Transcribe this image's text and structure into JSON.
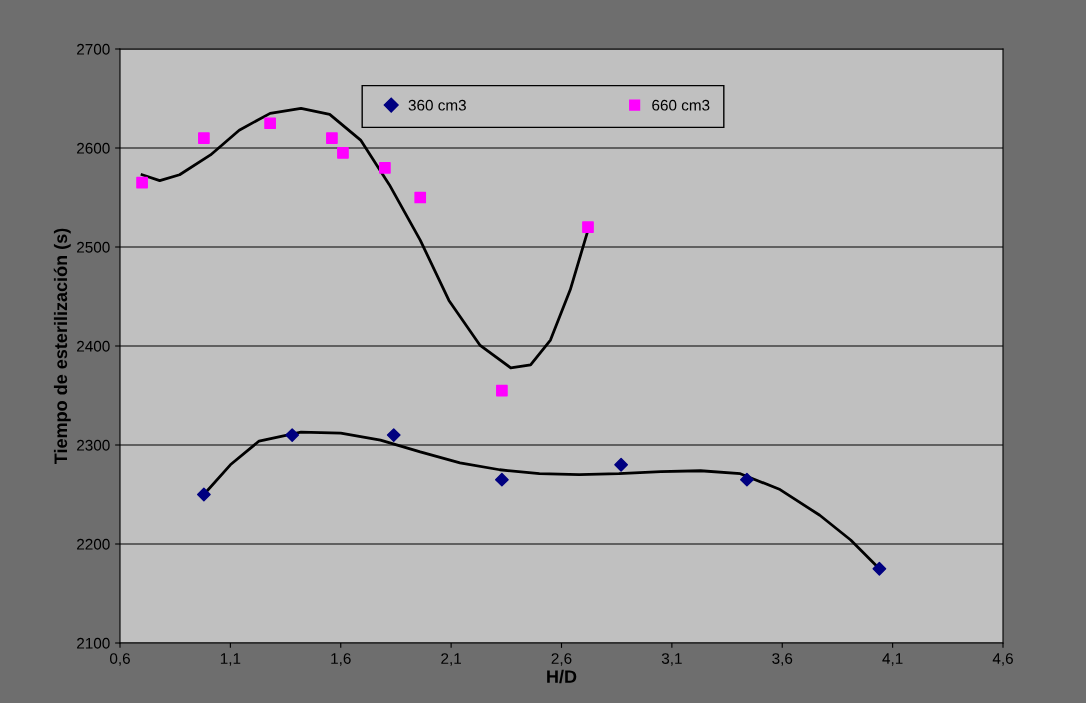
{
  "chart_data": {
    "type": "scatter",
    "xlabel": "H/D",
    "ylabel": "Tiempo de esterilización (s)",
    "xlim": [
      0.6,
      4.6
    ],
    "ylim": [
      2100,
      2700
    ],
    "xticks": [
      {
        "value": 0.6,
        "label": "0,6"
      },
      {
        "value": 1.1,
        "label": "1,1"
      },
      {
        "value": 1.6,
        "label": "1,6"
      },
      {
        "value": 2.1,
        "label": "2,1"
      },
      {
        "value": 2.6,
        "label": "2,6"
      },
      {
        "value": 3.1,
        "label": "3,1"
      },
      {
        "value": 3.6,
        "label": "3,6"
      },
      {
        "value": 4.1,
        "label": "4,1"
      },
      {
        "value": 4.6,
        "label": "4,6"
      }
    ],
    "yticks": [
      2100,
      2200,
      2300,
      2400,
      2500,
      2600,
      2700
    ],
    "grid": "y",
    "legend": "top",
    "series": [
      {
        "name": "360 cm3",
        "color": "#000080",
        "marker": "diamond",
        "x": [
          0.98,
          1.38,
          1.84,
          2.33,
          2.87,
          3.44,
          4.04
        ],
        "values": [
          2250,
          2310,
          2310,
          2265,
          2280,
          2265,
          2175
        ]
      },
      {
        "name": "660 cm3",
        "color": "#ff00ff",
        "marker": "square",
        "x": [
          0.7,
          0.98,
          1.28,
          1.56,
          1.61,
          1.8,
          1.96,
          2.33,
          2.72
        ],
        "values": [
          2565,
          2610,
          2625,
          2610,
          2595,
          2580,
          2550,
          2355,
          2520
        ]
      },
      {
        "type": "line",
        "color": "#000000",
        "marker": "none",
        "x": [
          0.98,
          1.1,
          1.23,
          1.42,
          1.6,
          1.78,
          1.96,
          2.14,
          2.32,
          2.5,
          2.68,
          2.86,
          3.05,
          3.23,
          3.41,
          3.59,
          3.77,
          3.91,
          4.04
        ],
        "values": [
          2250,
          2280,
          2304,
          2313,
          2312,
          2305,
          2293,
          2282,
          2275,
          2271,
          2270,
          2271,
          2273,
          2274,
          2271,
          2255,
          2229,
          2204,
          2175
        ]
      },
      {
        "type": "line",
        "color": "#000000",
        "marker": "none",
        "x": [
          0.7,
          0.78,
          0.87,
          1.01,
          1.14,
          1.28,
          1.42,
          1.55,
          1.69,
          1.82,
          1.96,
          2.09,
          2.23,
          2.37,
          2.46,
          2.55,
          2.64,
          2.72
        ],
        "values": [
          2573,
          2567,
          2573,
          2593,
          2618,
          2635,
          2640,
          2634,
          2608,
          2563,
          2507,
          2446,
          2401,
          2378,
          2381,
          2406,
          2457,
          2517
        ]
      }
    ]
  }
}
